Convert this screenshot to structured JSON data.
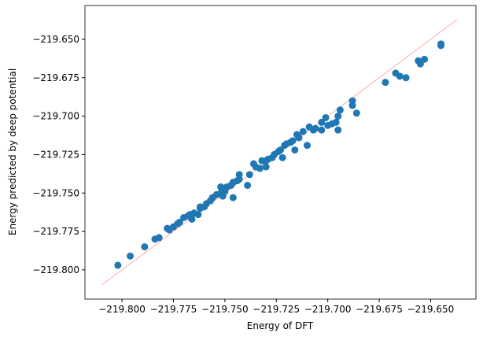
{
  "chart_data": {
    "type": "scatter",
    "xlabel": "Energy of DFT",
    "ylabel": "Energy predicted by deep potential",
    "color": "#1f77b4",
    "xlim": [
      -219.818,
      -219.628
    ],
    "ylim": [
      -219.819,
      -219.628
    ],
    "xticks": [
      {
        "value": -219.8,
        "label": "−219.800"
      },
      {
        "value": -219.775,
        "label": "−219.775"
      },
      {
        "value": -219.75,
        "label": "−219.750"
      },
      {
        "value": -219.725,
        "label": "−219.725"
      },
      {
        "value": -219.7,
        "label": "−219.700"
      },
      {
        "value": -219.675,
        "label": "−219.675"
      },
      {
        "value": -219.65,
        "label": "−219.650"
      }
    ],
    "yticks": [
      {
        "value": -219.8,
        "label": "−219.800"
      },
      {
        "value": -219.775,
        "label": "−219.775"
      },
      {
        "value": -219.75,
        "label": "−219.750"
      },
      {
        "value": -219.725,
        "label": "−219.725"
      },
      {
        "value": -219.7,
        "label": "−219.700"
      },
      {
        "value": -219.675,
        "label": "−219.675"
      },
      {
        "value": -219.65,
        "label": "−219.650"
      }
    ],
    "x": [
      -219.802,
      -219.796,
      -219.789,
      -219.784,
      -219.782,
      -219.778,
      -219.777,
      -219.775,
      -219.773,
      -219.772,
      -219.77,
      -219.768,
      -219.767,
      -219.765,
      -219.763,
      -219.762,
      -219.76,
      -219.759,
      -219.757,
      -219.756,
      -219.754,
      -219.752,
      -219.751,
      -219.75,
      -219.749,
      -219.747,
      -219.746,
      -219.744,
      -219.743,
      -219.739,
      -219.736,
      -219.735,
      -219.733,
      -219.732,
      -219.73,
      -219.729,
      -219.727,
      -219.726,
      -219.724,
      -219.723,
      -219.721,
      -219.72,
      -219.718,
      -219.717,
      -219.715,
      -219.714,
      -219.712,
      -219.71,
      -219.709,
      -219.707,
      -219.706,
      -219.703,
      -219.701,
      -219.7,
      -219.698,
      -219.696,
      -219.695,
      -219.694,
      -219.688,
      -219.688,
      -219.686,
      -219.672,
      -219.667,
      -219.665,
      -219.662,
      -219.656,
      -219.655,
      -219.653,
      -219.645,
      -219.645,
      -219.746,
      -219.738,
      -219.722,
      -219.716,
      -219.703,
      -219.695,
      -219.762,
      -219.766,
      -219.752,
      -219.743,
      -219.73
    ],
    "values": [
      -219.797,
      -219.791,
      -219.785,
      -219.78,
      -219.779,
      -219.773,
      -219.774,
      -219.772,
      -219.77,
      -219.769,
      -219.766,
      -219.765,
      -219.764,
      -219.763,
      -219.764,
      -219.76,
      -219.759,
      -219.757,
      -219.755,
      -219.753,
      -219.751,
      -219.75,
      -219.752,
      -219.749,
      -219.746,
      -219.745,
      -219.743,
      -219.742,
      -219.741,
      -219.745,
      -219.731,
      -219.733,
      -219.734,
      -219.729,
      -219.733,
      -219.728,
      -219.727,
      -219.725,
      -219.723,
      -219.722,
      -219.719,
      -219.718,
      -219.717,
      -219.716,
      -219.712,
      -219.714,
      -219.71,
      -219.719,
      -219.707,
      -219.709,
      -219.708,
      -219.704,
      -219.701,
      -219.706,
      -219.705,
      -219.704,
      -219.7,
      -219.696,
      -219.69,
      -219.693,
      -219.698,
      -219.678,
      -219.672,
      -219.674,
      -219.675,
      -219.664,
      -219.666,
      -219.663,
      -219.653,
      -219.654,
      -219.753,
      -219.738,
      -219.727,
      -219.722,
      -219.709,
      -219.709,
      -219.759,
      -219.767,
      -219.746,
      -219.738,
      -219.729
    ],
    "reference_line": {
      "color": "#ff0000",
      "x": [
        -219.8097,
        -219.6372
      ],
      "values": [
        -219.8097,
        -219.6372
      ]
    }
  }
}
